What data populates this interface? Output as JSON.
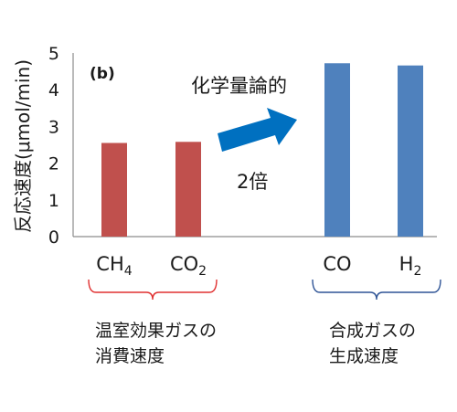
{
  "chart_data": {
    "type": "bar",
    "panel_label": "(b)",
    "ylabel": "反応速度(μmol/min)",
    "xlabel": "",
    "ylim": [
      0,
      5
    ],
    "yticks": [
      0,
      1,
      2,
      3,
      4,
      5
    ],
    "grid": false,
    "legend": "none",
    "categories": [
      {
        "base": "CH",
        "sub": "4"
      },
      {
        "base": "CO",
        "sub": "2"
      },
      {
        "base": "CO",
        "sub": ""
      },
      {
        "base": "H",
        "sub": "2"
      }
    ],
    "values": [
      2.55,
      2.58,
      4.72,
      4.66
    ],
    "bar_colors": [
      "#c0504d",
      "#c0504d",
      "#4f81bd",
      "#4f81bd"
    ],
    "annotations": {
      "arrow_label_top": "化学量論的",
      "arrow_label_bottom": "2倍",
      "arrow_color": "#0070c0"
    },
    "groups": [
      {
        "lines": [
          "温室効果ガスの",
          "消費速度"
        ],
        "bracket_color": "#e03030"
      },
      {
        "lines": [
          "合成ガスの",
          "生成速度"
        ],
        "bracket_color": "#2f5496"
      }
    ]
  }
}
